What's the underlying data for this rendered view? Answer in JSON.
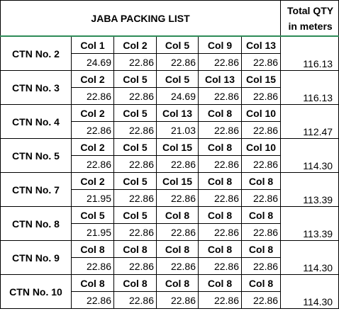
{
  "sheet": {
    "title": "JABA PACKING LIST",
    "total_header": [
      "Total QTY",
      "in meters"
    ]
  },
  "cartons": [
    {
      "label": "CTN No. 2",
      "cols": [
        "Col 1",
        "Col 2",
        "Col 5",
        "Col 9",
        "Col 13"
      ],
      "values": [
        "24.69",
        "22.86",
        "22.86",
        "22.86",
        "22.86"
      ],
      "total": "116.13"
    },
    {
      "label": "CTN No. 3",
      "cols": [
        "Col 2",
        "Col 5",
        "Col 5",
        "Col 13",
        "Col 15"
      ],
      "values": [
        "22.86",
        "22.86",
        "24.69",
        "22.86",
        "22.86"
      ],
      "total": "116.13"
    },
    {
      "label": "CTN No. 4",
      "cols": [
        "Col 2",
        "Col 5",
        "Col 13",
        "Col 8",
        "Col 10"
      ],
      "values": [
        "22.86",
        "22.86",
        "21.03",
        "22.86",
        "22.86"
      ],
      "total": "112.47"
    },
    {
      "label": "CTN No. 5",
      "cols": [
        "Col 2",
        "Col 5",
        "Col 15",
        "Col 8",
        "Col 10"
      ],
      "values": [
        "22.86",
        "22.86",
        "22.86",
        "22.86",
        "22.86"
      ],
      "total": "114.30"
    },
    {
      "label": "CTN No. 7",
      "cols": [
        "Col 2",
        "Col 5",
        "Col 15",
        "Col 8",
        "Col 8"
      ],
      "values": [
        "21.95",
        "22.86",
        "22.86",
        "22.86",
        "22.86"
      ],
      "total": "113.39"
    },
    {
      "label": "CTN No. 8",
      "cols": [
        "Col 5",
        "Col 5",
        "Col 8",
        "Col 8",
        "Col 8"
      ],
      "values": [
        "21.95",
        "22.86",
        "22.86",
        "22.86",
        "22.86"
      ],
      "total": "113.39"
    },
    {
      "label": "CTN No. 9",
      "cols": [
        "Col 8",
        "Col 8",
        "Col 8",
        "Col 8",
        "Col 8"
      ],
      "values": [
        "22.86",
        "22.86",
        "22.86",
        "22.86",
        "22.86"
      ],
      "total": "114.30"
    },
    {
      "label": "CTN No. 10",
      "cols": [
        "Col 8",
        "Col 8",
        "Col 8",
        "Col 8",
        "Col 8"
      ],
      "values": [
        "22.86",
        "22.86",
        "22.86",
        "22.86",
        "22.86"
      ],
      "total": "114.30"
    }
  ]
}
